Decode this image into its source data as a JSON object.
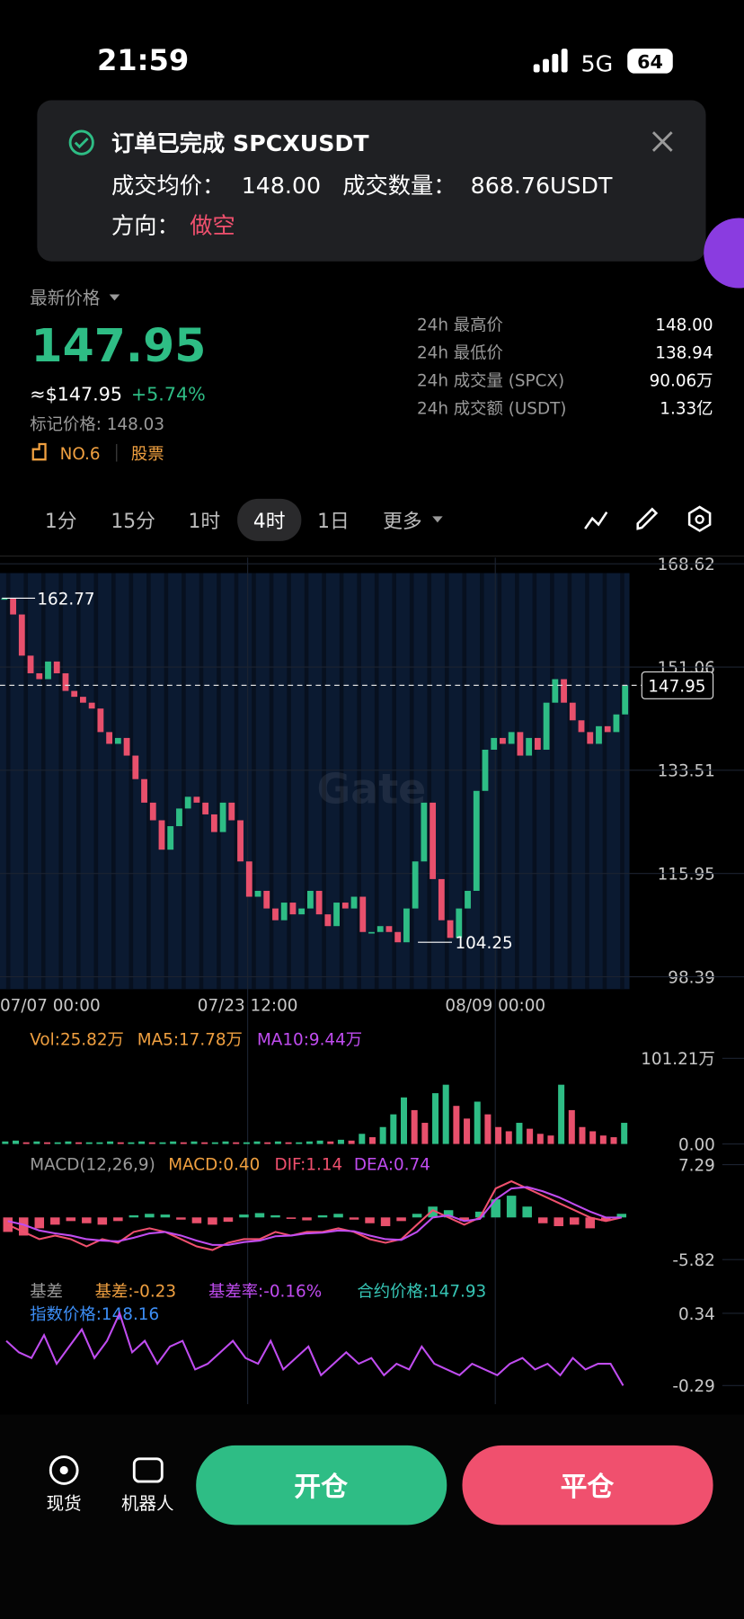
{
  "status_bar": {
    "time": "21:59",
    "network": "5G",
    "battery": "64"
  },
  "notification": {
    "title": "订单已完成 SPCXUSDT",
    "avg_price_label": "成交均价：",
    "avg_price": "148.00",
    "qty_label": "成交数量：",
    "qty": "868.76USDT",
    "direction_label": "方向：",
    "direction": "做空"
  },
  "ticker": {
    "price_label": "最新价格",
    "last_price": "147.95",
    "usd_price": "≈$147.95",
    "change": "+5.74%",
    "mark_price": "标记价格: 148.03",
    "rank": "NO.6",
    "tag": "股票",
    "stats": [
      {
        "label": "24h 最高价",
        "value": "148.00"
      },
      {
        "label": "24h 最低价",
        "value": "138.94"
      },
      {
        "label": "24h 成交量 (SPCX)",
        "value": "90.06万"
      },
      {
        "label": "24h 成交额 (USDT)",
        "value": "1.33亿"
      }
    ]
  },
  "timeframes": [
    "1分",
    "15分",
    "1时",
    "4时",
    "1日",
    "更多"
  ],
  "watermark": "Gate",
  "chart_data": [
    {
      "type": "candlestick",
      "close": [
        162.77,
        160,
        153,
        150,
        149,
        152,
        150,
        147,
        146,
        145,
        144,
        140,
        138,
        139,
        136,
        132,
        128,
        125,
        120,
        124,
        127,
        129,
        128,
        126,
        123,
        128,
        125,
        118,
        112,
        113,
        110,
        108,
        111,
        109,
        110,
        113,
        109,
        107,
        111,
        110,
        112,
        106,
        106,
        107,
        106,
        104.25,
        110,
        118,
        128,
        115,
        108,
        105,
        110,
        113,
        130,
        137,
        139,
        138,
        140,
        136,
        139,
        137,
        145,
        149,
        145,
        142,
        140,
        138,
        141,
        140,
        143,
        147.95
      ],
      "up_color": "#2ebd85",
      "down_color": "#e8506c",
      "ylim": [
        98.39,
        168.62
      ],
      "yticks": [
        98.39,
        115.95,
        133.51,
        151.06,
        168.62
      ],
      "xticks": [
        "07/07 00:00",
        "07/23 12:00",
        "08/09 00:00"
      ],
      "high_label": 162.77,
      "low_label": 104.25,
      "last_price": 147.95
    },
    {
      "type": "bar",
      "legend": [
        {
          "text": "Vol:25.82万",
          "color": "#f0a040"
        },
        {
          "text": "MA5:17.78万",
          "color": "#f0a040"
        },
        {
          "text": "MA10:9.44万",
          "color": "#c04cf0"
        }
      ],
      "values": [
        3,
        4,
        2,
        3,
        2,
        2,
        3,
        2,
        2,
        2,
        3,
        2,
        2,
        3,
        2,
        2,
        3,
        2,
        3,
        2,
        2,
        3,
        2,
        2,
        3,
        2,
        3,
        2,
        2,
        3,
        4,
        3,
        5,
        4,
        12,
        8,
        20,
        35,
        55,
        40,
        25,
        60,
        70,
        45,
        30,
        50,
        35,
        20,
        15,
        25,
        18,
        12,
        10,
        70,
        40,
        20,
        15,
        10,
        8,
        25
      ],
      "ylim": [
        0,
        101.21
      ],
      "yticks": [
        {
          "value": 101.21,
          "label": "101.21万"
        },
        {
          "value": 0,
          "label": "0.00"
        }
      ]
    },
    {
      "type": "macd",
      "legend": [
        {
          "text": "MACD(12,26,9)",
          "color": "#9a9a9a"
        },
        {
          "text": "MACD:0.40",
          "color": "#f0a040"
        },
        {
          "text": "DIF:1.14",
          "color": "#f0506e"
        },
        {
          "text": "DEA:0.74",
          "color": "#c04cf0"
        }
      ],
      "histogram": [
        -2,
        -2.5,
        -1.5,
        -1,
        -0.5,
        -0.8,
        -1,
        -0.5,
        0.3,
        0.5,
        0.4,
        -0.3,
        -0.8,
        -1,
        -0.6,
        0.4,
        0.6,
        0.3,
        -0.2,
        -0.4,
        0.3,
        0.5,
        -0.3,
        -0.8,
        -1.2,
        -0.5,
        0.5,
        1.5,
        1,
        -0.5,
        0.8,
        2.5,
        3,
        1.5,
        -0.8,
        -1.2,
        -1,
        -1.5,
        -0.5,
        0.5
      ],
      "series": [
        {
          "color": "#f0506e",
          "values": [
            -1,
            -2,
            -3,
            -2.5,
            -3,
            -4,
            -3,
            -3.5,
            -2,
            -1.5,
            -2,
            -3,
            -4,
            -4.5,
            -3.5,
            -3,
            -3,
            -2,
            -2.5,
            -2,
            -2,
            -1.5,
            -2,
            -3,
            -3.5,
            -3,
            -1,
            1,
            0,
            -1,
            0,
            4,
            5,
            4,
            3,
            2,
            1,
            0,
            -0.5,
            0
          ]
        },
        {
          "color": "#c04cf0",
          "values": [
            -0.5,
            -1,
            -1.8,
            -2.2,
            -2.5,
            -3,
            -3.2,
            -3.3,
            -2.8,
            -2.2,
            -2,
            -2.5,
            -3.2,
            -3.8,
            -3.8,
            -3.4,
            -3.2,
            -2.6,
            -2.5,
            -2.2,
            -2.1,
            -1.8,
            -1.9,
            -2.5,
            -3,
            -3.1,
            -2,
            0,
            0.3,
            -0.5,
            -0.2,
            2.5,
            4,
            4.2,
            3.6,
            2.8,
            1.8,
            0.8,
            0,
            0
          ]
        }
      ],
      "ylim": [
        -5.82,
        7.29
      ],
      "yticks": [
        7.29,
        -5.82
      ]
    },
    {
      "type": "line",
      "legend": [
        {
          "text": "基差",
          "color": "#9a9a9a"
        },
        {
          "text": "基差:-0.23",
          "color": "#f0a040"
        },
        {
          "text": "基差率:-0.16%",
          "color": "#c04cf0"
        },
        {
          "text": "合约价格:147.93",
          "color": "#36c5b5"
        },
        {
          "text": "指数价格:148.16",
          "color": "#3d8ef5"
        }
      ],
      "values": [
        0.1,
        0,
        -0.05,
        0.15,
        -0.1,
        0.05,
        0.2,
        -0.05,
        0.1,
        0.34,
        0,
        0.1,
        -0.1,
        0.05,
        0.1,
        -0.15,
        -0.1,
        0,
        0.1,
        -0.05,
        -0.1,
        0.1,
        -0.15,
        -0.05,
        0.05,
        -0.2,
        -0.1,
        0,
        -0.1,
        -0.05,
        -0.2,
        -0.1,
        -0.15,
        0.05,
        -0.1,
        -0.15,
        -0.2,
        -0.1,
        -0.15,
        -0.2,
        -0.1,
        -0.05,
        -0.15,
        -0.1,
        -0.2,
        -0.05,
        -0.15,
        -0.1,
        -0.1,
        -0.29
      ],
      "color": "#c04cf0",
      "ylim": [
        -0.29,
        0.34
      ],
      "yticks": [
        0.34,
        -0.29
      ]
    }
  ],
  "bottom_bar": {
    "spot": "现货",
    "robot": "机器人",
    "open": "开仓",
    "close": "平仓"
  }
}
